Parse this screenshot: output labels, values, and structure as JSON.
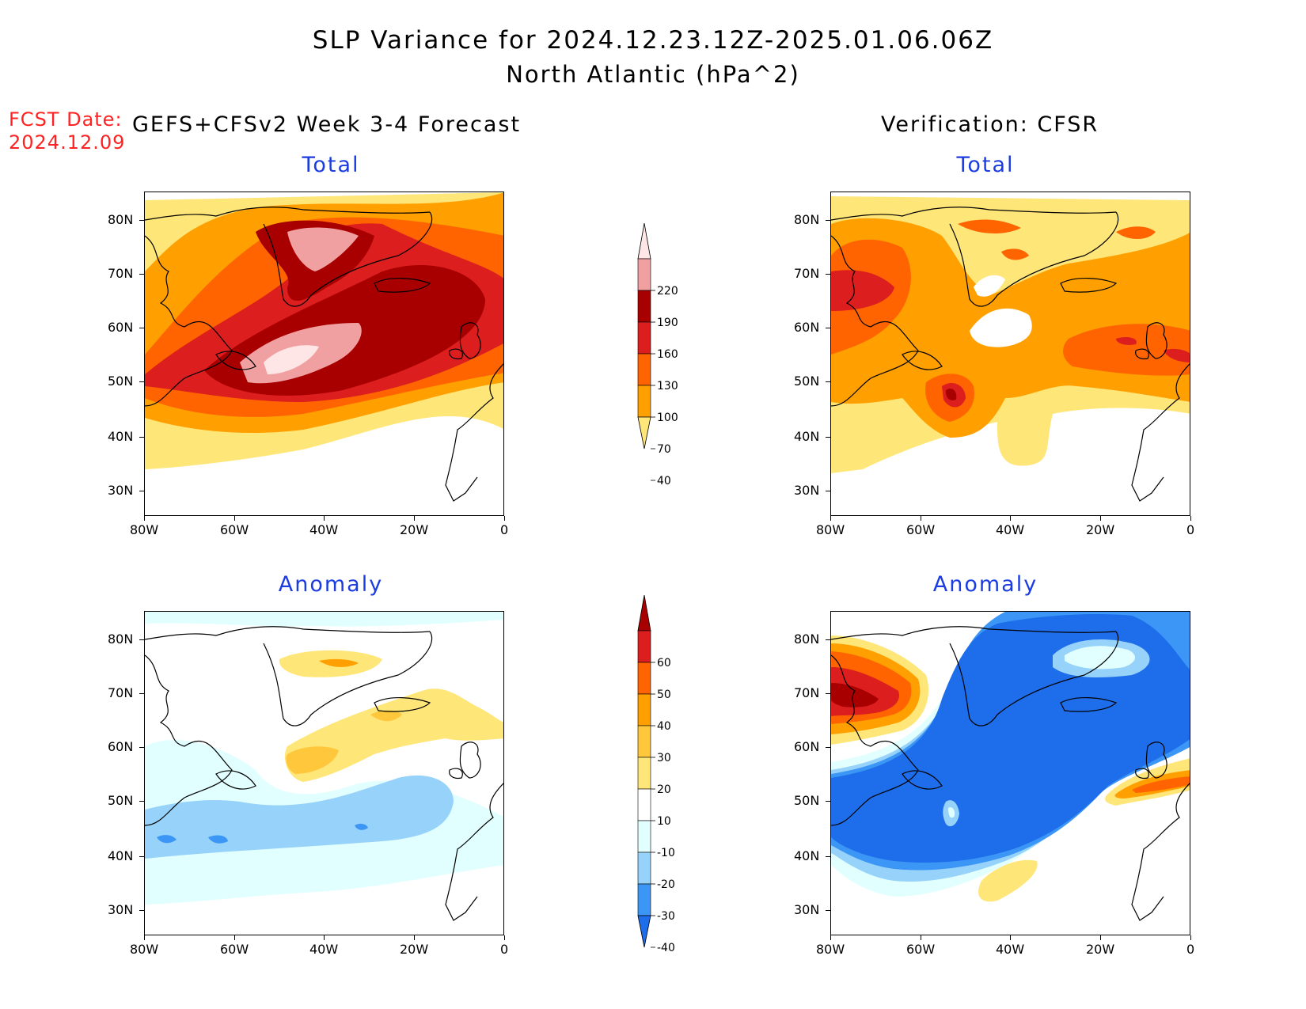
{
  "title": {
    "line1": "SLP Variance for 2024.12.23.12Z-2025.01.06.06Z",
    "line2": "North Atlantic (hPa^2)"
  },
  "forecast_date": {
    "label": "FCST Date:",
    "value": "2024.12.09"
  },
  "columns": {
    "left": "GEFS+CFSv2 Week 3-4 Forecast",
    "right": "Verification: CFSR"
  },
  "panel_titles": {
    "total": "Total",
    "anomaly": "Anomaly"
  },
  "axes": {
    "lat_labels": [
      "80N",
      "70N",
      "60N",
      "50N",
      "40N",
      "30N"
    ],
    "lon_labels": [
      "80W",
      "60W",
      "40W",
      "20W",
      "0"
    ]
  },
  "colorbars": {
    "total": {
      "levels": [
        "220",
        "190",
        "160",
        "130",
        "100",
        "70",
        "40"
      ],
      "colors": [
        "#ffe6e6",
        "#f0a0a0",
        "#a80000",
        "#dc1e1e",
        "#ff6400",
        "#ffa000",
        "#ffe678"
      ]
    },
    "anomaly": {
      "levels": [
        "60",
        "50",
        "40",
        "30",
        "20",
        "10",
        "-10",
        "-20",
        "-30",
        "-40"
      ],
      "colors": [
        "#a80000",
        "#dc1e1e",
        "#ff6400",
        "#ffa000",
        "#ffc83c",
        "#ffe678",
        "#ffffff",
        "#e1ffff",
        "#96d2fa",
        "#3c96f5",
        "#1e6eeb"
      ]
    }
  },
  "colors": {
    "title_sub": "#1a3ce0",
    "fcst_date": "#ff2222"
  }
}
